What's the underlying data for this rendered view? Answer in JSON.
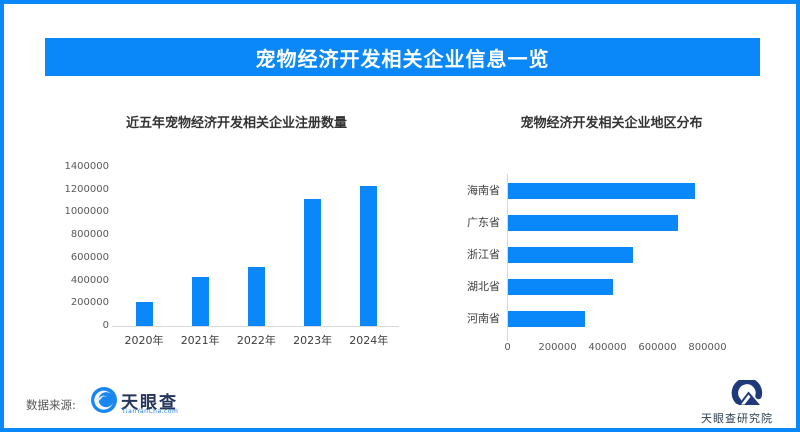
{
  "colors": {
    "accent": "#0a87f8",
    "bar": "#0a87f8",
    "axis_line": "#d9d9d9",
    "tyc_navy": "#25355c",
    "tyc_blue": "#1a7ce8",
    "institute_navy": "#1e3a7a"
  },
  "banner": {
    "title": "宠物经济开发相关企业信息一览"
  },
  "footer": {
    "source_label": "数据来源:",
    "tyc_logo_text": "天眼查",
    "tyc_logo_subtext": "TianYanCha.com",
    "institute_label": "天眼查研究院"
  },
  "chart_data": [
    {
      "type": "bar",
      "orientation": "vertical",
      "title": "近五年宠物经济开发相关企业注册数量",
      "categories": [
        "2020年",
        "2021年",
        "2022年",
        "2023年",
        "2024年"
      ],
      "values": [
        210000,
        430000,
        520000,
        1120000,
        1230000
      ],
      "xlabel": "",
      "ylabel": "",
      "ylim": [
        0,
        1400000
      ],
      "ytick_step": 200000,
      "grid": false,
      "legend": "none"
    },
    {
      "type": "bar",
      "orientation": "horizontal",
      "title": "宠物经济开发相关企业地区分布",
      "categories": [
        "海南省",
        "广东省",
        "浙江省",
        "湖北省",
        "河南省"
      ],
      "values": [
        750000,
        680000,
        500000,
        420000,
        310000
      ],
      "xlabel": "",
      "ylabel": "",
      "xlim": [
        0,
        800000
      ],
      "xtick_step": 200000,
      "grid": false,
      "legend": "none"
    }
  ]
}
